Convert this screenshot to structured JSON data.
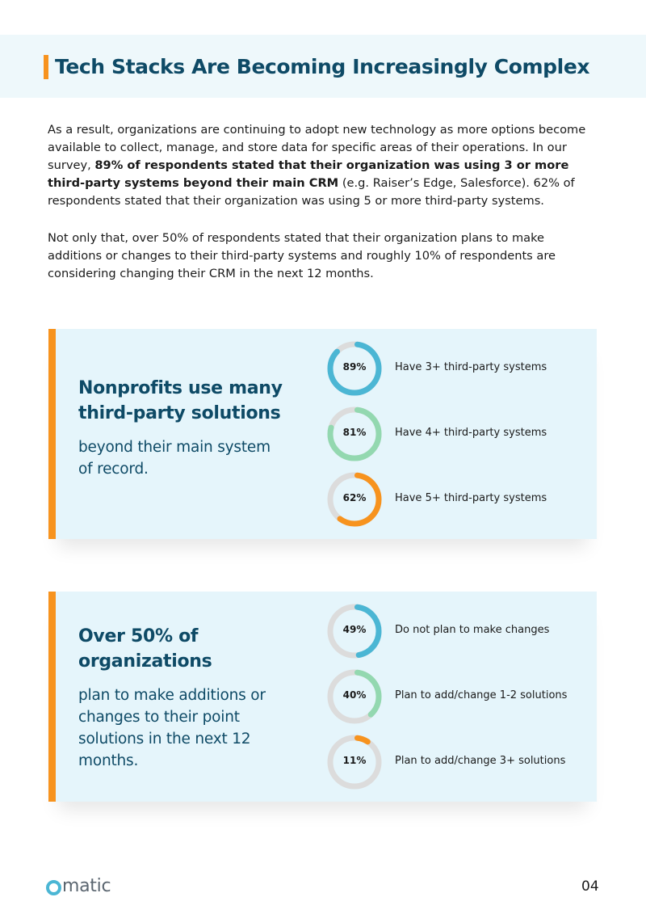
{
  "header": {
    "title": "Tech Stacks Are Becoming Increasingly Complex"
  },
  "intro": {
    "p1_start": "As a result, organizations are continuing to adopt new technology as more options become available to collect, manage, and store data for specific areas of their operations. In our survey, ",
    "p1_bold": "89% of respondents stated that their organization was using 3 or more third-party systems beyond their main CRM",
    "p1_end": " (e.g. Raiser’s Edge, Salesforce). 62% of respondents stated that their organization was using 5 or more third-party systems.",
    "p2": "Not only that, over 50% of respondents stated that their organization plans to make additions or changes to their third-party systems and roughly 10% of respondents are considering changing their CRM in the next 12 months."
  },
  "colors": {
    "blue": "#4bb6d4",
    "green": "#93d8b0",
    "orange": "#f7931e",
    "track": "#dcdcdc"
  },
  "panels": [
    {
      "heading": "Nonprofits use many third-party solutions",
      "subheading": "beyond their main system of record.",
      "items": [
        {
          "percent_label": "89%",
          "value": 89,
          "color": "#4bb6d4",
          "text": "Have 3+ third-party systems"
        },
        {
          "percent_label": "81%",
          "value": 81,
          "color": "#93d8b0",
          "text": "Have 4+ third-party systems"
        },
        {
          "percent_label": "62%",
          "value": 62,
          "color": "#f7931e",
          "text": "Have 5+ third-party systems"
        }
      ]
    },
    {
      "heading": "Over 50% of organizations",
      "subheading": "plan to make additions or changes to their point solutions in the next 12 months.",
      "items": [
        {
          "percent_label": "49%",
          "value": 49,
          "color": "#4bb6d4",
          "text": "Do not plan to make changes"
        },
        {
          "percent_label": "40%",
          "value": 40,
          "color": "#93d8b0",
          "text": "Plan to add/change 1-2 solutions"
        },
        {
          "percent_label": "11%",
          "value": 11,
          "color": "#f7931e",
          "text": "Plan to add/change 3+ solutions"
        }
      ]
    }
  ],
  "footer": {
    "logo_text": "matic",
    "logo_icon": "omatic-ring-icon",
    "page_number": "04"
  }
}
